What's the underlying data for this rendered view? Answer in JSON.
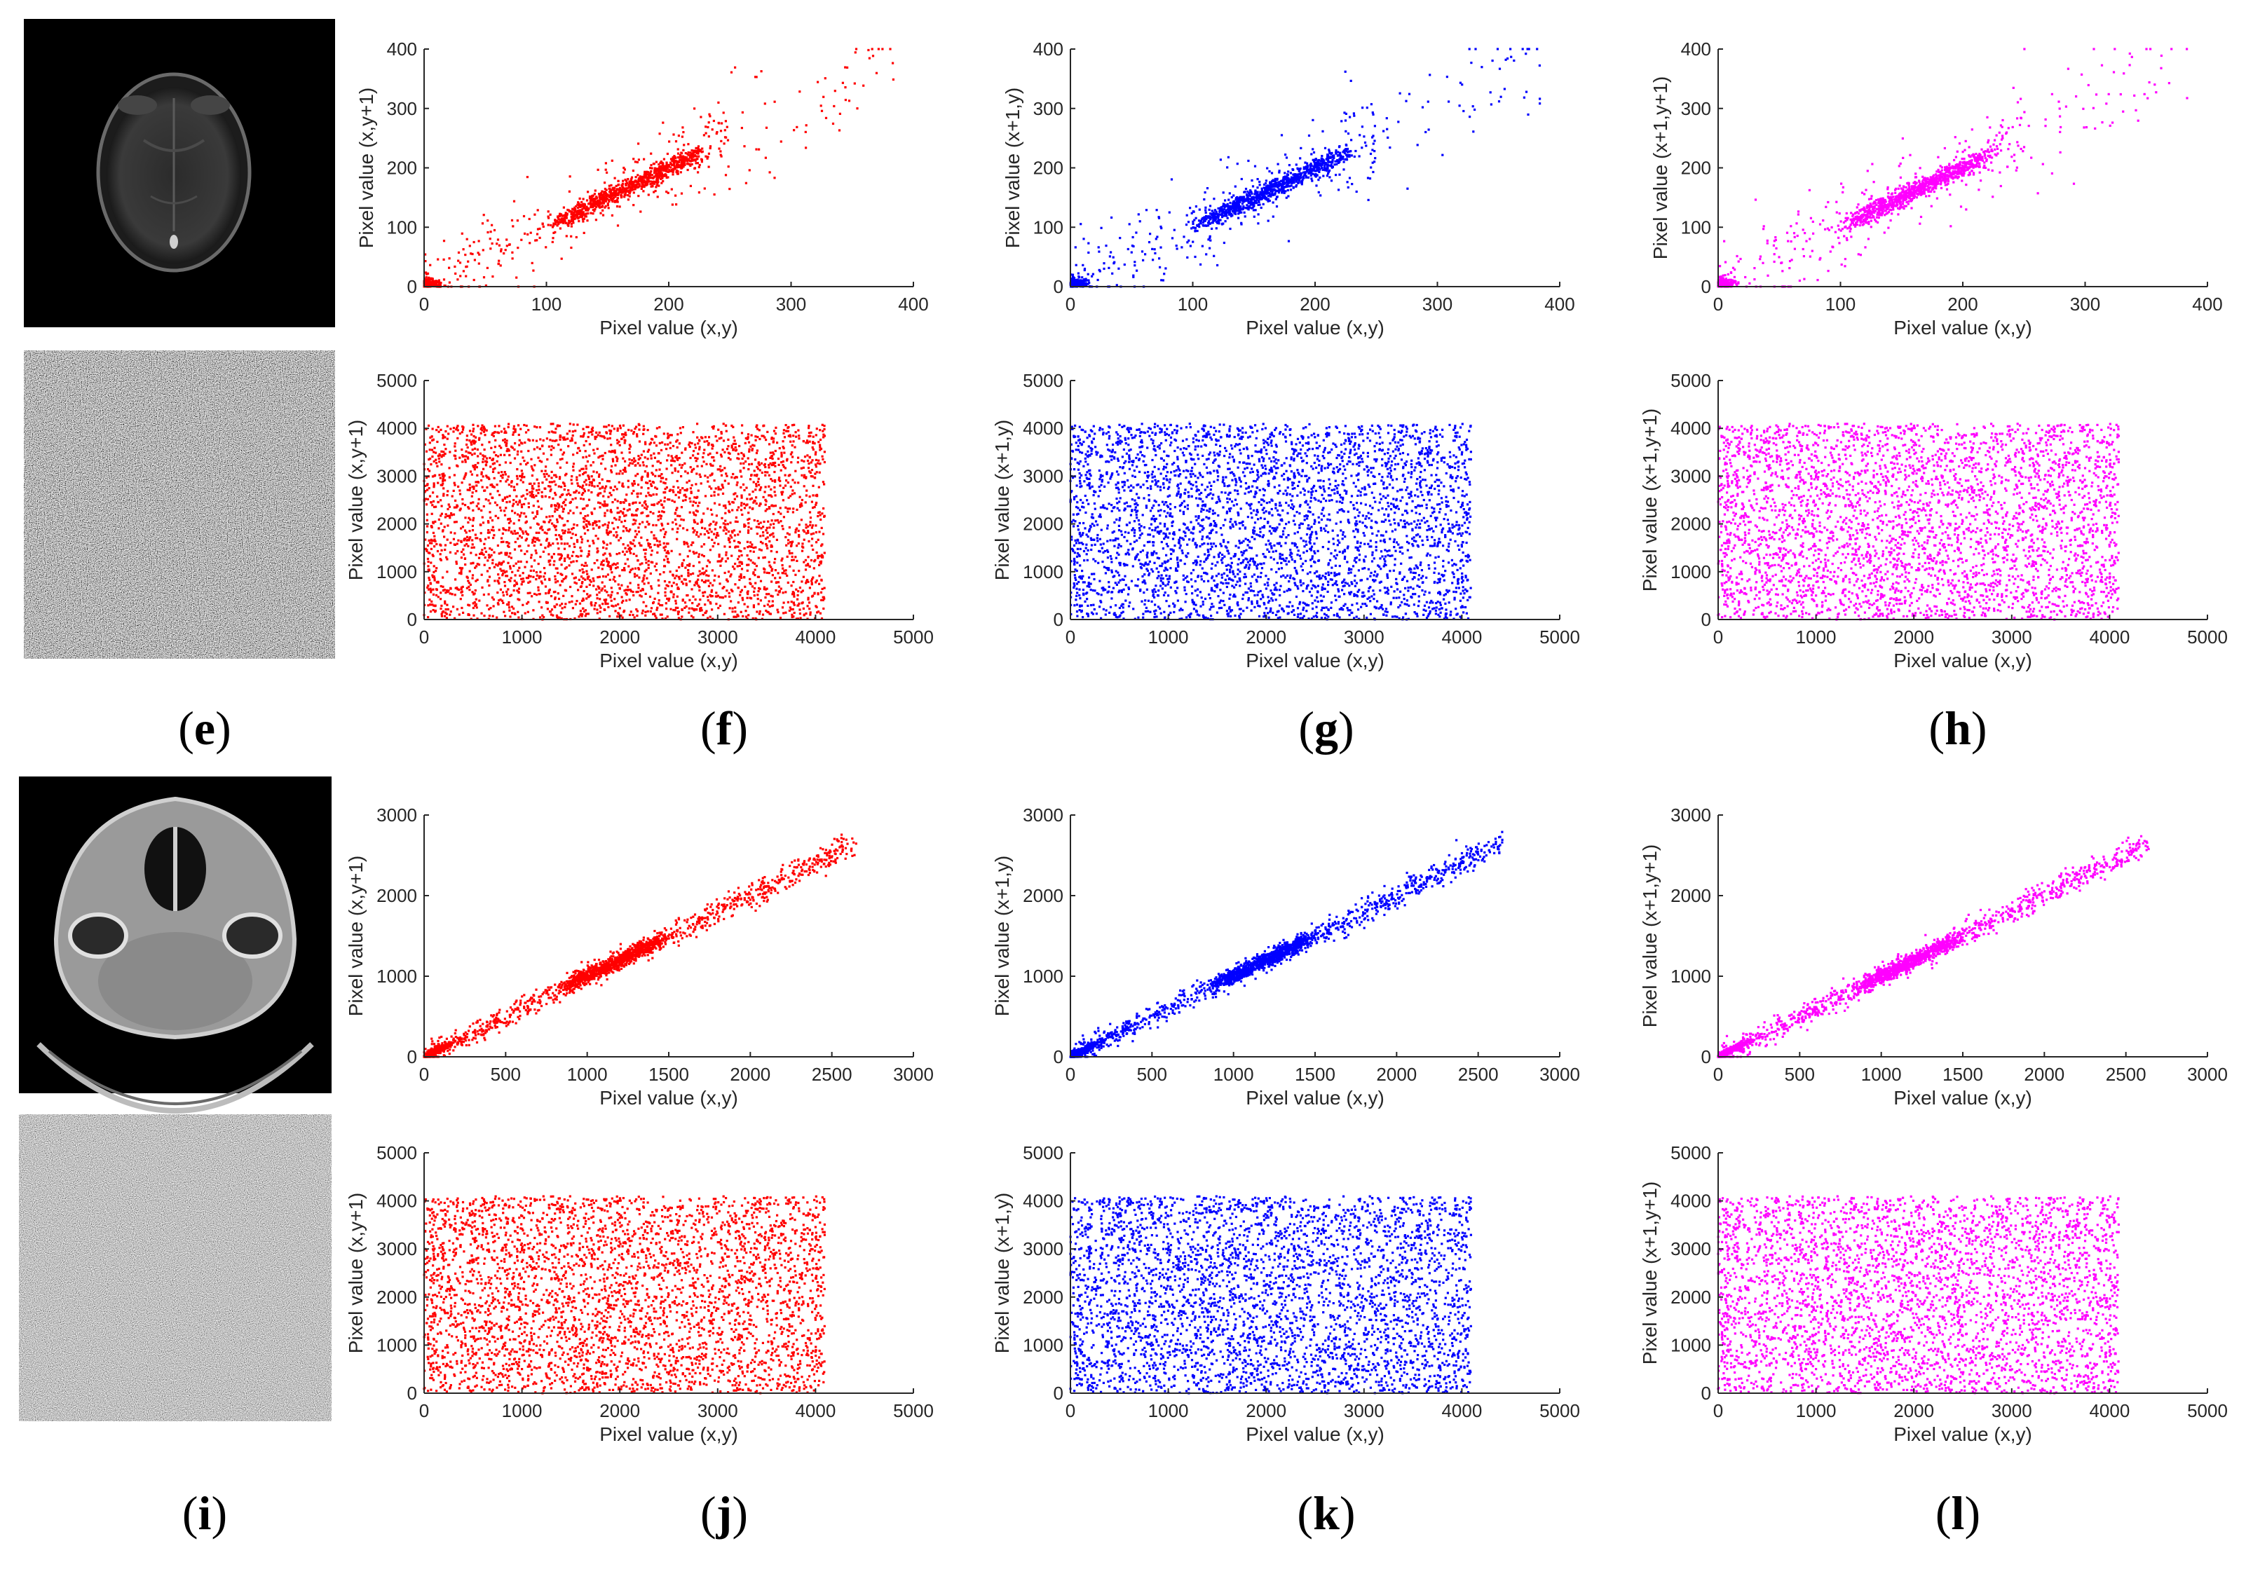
{
  "colors": {
    "horizontal": "#ff0000",
    "vertical": "#0000ff",
    "diagonal": "#ff00ff"
  },
  "row_images": [
    {
      "name": "mri-brain-plain-image",
      "kind": "mri"
    },
    {
      "name": "mri-encrypted-image",
      "kind": "noise-dark"
    },
    {
      "name": "ct-head-plain-image",
      "kind": "ct"
    },
    {
      "name": "ct-encrypted-image",
      "kind": "noise-gray"
    }
  ],
  "panel_labels": [
    {
      "letter": "e",
      "open": "(",
      "close": ")"
    },
    {
      "letter": "f",
      "open": "(",
      "close": ")"
    },
    {
      "letter": "g",
      "open": "(",
      "close": ")"
    },
    {
      "letter": "h",
      "open": "(",
      "close": ")"
    },
    {
      "letter": "i",
      "open": "(",
      "close": ")"
    },
    {
      "letter": "j",
      "open": "(",
      "close": ")"
    },
    {
      "letter": "k",
      "open": "(",
      "close": ")"
    },
    {
      "letter": "l",
      "open": "(",
      "close": ")"
    }
  ],
  "chart_data": [
    {
      "type": "scatter",
      "row": 0,
      "col": 0,
      "direction": "horizontal",
      "pattern": "correlated",
      "xlabel": "Pixel value (x,y)",
      "ylabel": "Pixel value (x,y+1)",
      "xlim": [
        0,
        400
      ],
      "ylim": [
        0,
        400
      ],
      "xticks": [
        0,
        100,
        200,
        300,
        400
      ],
      "yticks": [
        0,
        100,
        200,
        300,
        400
      ],
      "data_max": 385,
      "points_description": "dense cluster along y = x from ~100 to ~220, plus cluster near 0"
    },
    {
      "type": "scatter",
      "row": 0,
      "col": 1,
      "direction": "vertical",
      "pattern": "correlated",
      "xlabel": "Pixel value (x,y)",
      "ylabel": "Pixel value (x+1,y)",
      "xlim": [
        0,
        400
      ],
      "ylim": [
        0,
        400
      ],
      "xticks": [
        0,
        100,
        200,
        300,
        400
      ],
      "yticks": [
        0,
        100,
        200,
        300,
        400
      ],
      "data_max": 385,
      "points_description": "dense cluster along y = x from ~100 to ~220, plus cluster near 0"
    },
    {
      "type": "scatter",
      "row": 0,
      "col": 2,
      "direction": "diagonal",
      "pattern": "correlated",
      "xlabel": "Pixel value (x,y)",
      "ylabel": "Pixel value (x+1,y+1)",
      "xlim": [
        0,
        400
      ],
      "ylim": [
        0,
        400
      ],
      "xticks": [
        0,
        100,
        200,
        300,
        400
      ],
      "yticks": [
        0,
        100,
        200,
        300,
        400
      ],
      "data_max": 385,
      "points_description": "dense cluster along y = x from ~100 to ~220, plus cluster near 0"
    },
    {
      "type": "scatter",
      "row": 1,
      "col": 0,
      "direction": "horizontal",
      "pattern": "uniform",
      "xlabel": "Pixel value (x,y)",
      "ylabel": "Pixel value (x,y+1)",
      "xlim": [
        0,
        5000
      ],
      "ylim": [
        0,
        5000
      ],
      "xticks": [
        0,
        1000,
        2000,
        3000,
        4000,
        5000
      ],
      "yticks": [
        0,
        1000,
        2000,
        3000,
        4000,
        5000
      ],
      "data_max": 4095,
      "points_description": "uniform random over [0, 4095] x [0, 4095]"
    },
    {
      "type": "scatter",
      "row": 1,
      "col": 1,
      "direction": "vertical",
      "pattern": "uniform",
      "xlabel": "Pixel value (x,y)",
      "ylabel": "Pixel value (x+1,y)",
      "xlim": [
        0,
        5000
      ],
      "ylim": [
        0,
        5000
      ],
      "xticks": [
        0,
        1000,
        2000,
        3000,
        4000,
        5000
      ],
      "yticks": [
        0,
        1000,
        2000,
        3000,
        4000,
        5000
      ],
      "data_max": 4095,
      "points_description": "uniform random over [0, 4095] x [0, 4095]"
    },
    {
      "type": "scatter",
      "row": 1,
      "col": 2,
      "direction": "diagonal",
      "pattern": "uniform",
      "xlabel": "Pixel value (x,y)",
      "ylabel": "Pixel value (x+1,y+1)",
      "xlim": [
        0,
        5000
      ],
      "ylim": [
        0,
        5000
      ],
      "xticks": [
        0,
        1000,
        2000,
        3000,
        4000,
        5000
      ],
      "yticks": [
        0,
        1000,
        2000,
        3000,
        4000,
        5000
      ],
      "data_max": 4095,
      "points_description": "uniform random over [0, 4095] x [0, 4095]"
    },
    {
      "type": "scatter",
      "row": 2,
      "col": 0,
      "direction": "horizontal",
      "pattern": "correlated",
      "xlabel": "Pixel value (x,y)",
      "ylabel": "Pixel value (x,y+1)",
      "xlim": [
        0,
        3000
      ],
      "ylim": [
        0,
        3000
      ],
      "xticks": [
        0,
        500,
        1000,
        1500,
        2000,
        2500,
        3000
      ],
      "yticks": [
        0,
        1000,
        2000,
        3000
      ],
      "data_max": 2650,
      "points_description": "tight band along y = x from 0 to ~2650, dense around 1000-1400"
    },
    {
      "type": "scatter",
      "row": 2,
      "col": 1,
      "direction": "vertical",
      "pattern": "correlated",
      "xlabel": "Pixel value (x,y)",
      "ylabel": "Pixel value (x+1,y)",
      "xlim": [
        0,
        3000
      ],
      "ylim": [
        0,
        3000
      ],
      "xticks": [
        0,
        500,
        1000,
        1500,
        2000,
        2500,
        3000
      ],
      "yticks": [
        0,
        1000,
        2000,
        3000
      ],
      "data_max": 2650,
      "points_description": "tight band along y = x from 0 to ~2650, dense around 1000-1400"
    },
    {
      "type": "scatter",
      "row": 2,
      "col": 2,
      "direction": "diagonal",
      "pattern": "correlated",
      "xlabel": "Pixel value (x,y)",
      "ylabel": "Pixel value (x+1,y+1)",
      "xlim": [
        0,
        3000
      ],
      "ylim": [
        0,
        3000
      ],
      "xticks": [
        0,
        500,
        1000,
        1500,
        2000,
        2500,
        3000
      ],
      "yticks": [
        0,
        1000,
        2000,
        3000
      ],
      "data_max": 2650,
      "points_description": "tight band along y = x from 0 to ~2650, dense around 1000-1400"
    },
    {
      "type": "scatter",
      "row": 3,
      "col": 0,
      "direction": "horizontal",
      "pattern": "uniform",
      "xlabel": "Pixel value (x,y)",
      "ylabel": "Pixel value (x,y+1)",
      "xlim": [
        0,
        5000
      ],
      "ylim": [
        0,
        5000
      ],
      "xticks": [
        0,
        1000,
        2000,
        3000,
        4000,
        5000
      ],
      "yticks": [
        0,
        1000,
        2000,
        3000,
        4000,
        5000
      ],
      "data_max": 4095,
      "points_description": "uniform random over [0, 4095] x [0, 4095]"
    },
    {
      "type": "scatter",
      "row": 3,
      "col": 1,
      "direction": "vertical",
      "pattern": "uniform",
      "xlabel": "Pixel value (x,y)",
      "ylabel": "Pixel value (x+1,y)",
      "xlim": [
        0,
        5000
      ],
      "ylim": [
        0,
        5000
      ],
      "xticks": [
        0,
        1000,
        2000,
        3000,
        4000,
        5000
      ],
      "yticks": [
        0,
        1000,
        2000,
        3000,
        4000,
        5000
      ],
      "data_max": 4095,
      "points_description": "uniform random over [0, 4095] x [0, 4095]"
    },
    {
      "type": "scatter",
      "row": 3,
      "col": 2,
      "direction": "diagonal",
      "pattern": "uniform",
      "xlabel": "Pixel value (x,y)",
      "ylabel": "Pixel value (x+1,y+1)",
      "xlim": [
        0,
        5000
      ],
      "ylim": [
        0,
        5000
      ],
      "xticks": [
        0,
        1000,
        2000,
        3000,
        4000,
        5000
      ],
      "yticks": [
        0,
        1000,
        2000,
        3000,
        4000,
        5000
      ],
      "data_max": 4095,
      "points_description": "uniform random over [0, 4095] x [0, 4095]"
    }
  ]
}
